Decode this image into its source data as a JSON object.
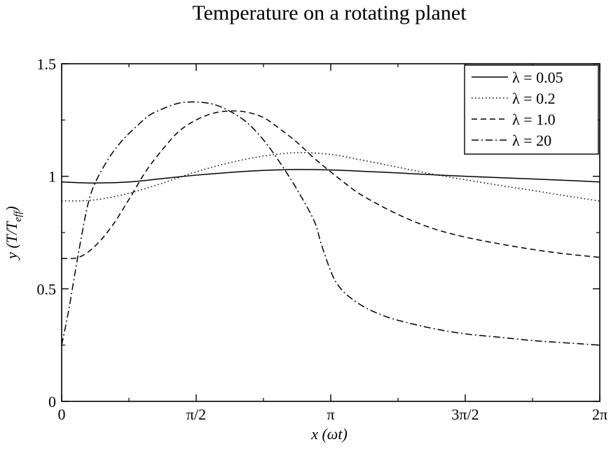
{
  "chart_data": {
    "type": "line",
    "title": "Temperature on a rotating planet",
    "xlabel": "x (ωt)",
    "ylabel_prefix": "y (T/T",
    "ylabel_subscript": "eff",
    "ylabel_suffix": ")",
    "xlim": [
      0,
      6.283185
    ],
    "ylim": [
      0,
      1.5
    ],
    "x_ticks": [
      {
        "value": 0,
        "label": "0"
      },
      {
        "value": 1.570796,
        "label": "π/2"
      },
      {
        "value": 3.141593,
        "label": "π"
      },
      {
        "value": 4.712389,
        "label": "3π/2"
      },
      {
        "value": 6.283185,
        "label": "2π"
      }
    ],
    "y_ticks": [
      {
        "value": 0,
        "label": "0"
      },
      {
        "value": 0.5,
        "label": "0.5"
      },
      {
        "value": 1,
        "label": "1"
      },
      {
        "value": 1.5,
        "label": "1.5"
      }
    ],
    "grid": false,
    "legend_position": "top-right",
    "colors": {
      "line": "#000000",
      "background": "#ffffff"
    },
    "series": [
      {
        "name": "λ = 0.05",
        "dash": "solid",
        "x": [
          0,
          0.39,
          0.79,
          1.18,
          1.57,
          1.96,
          2.36,
          2.75,
          3.14,
          3.53,
          3.93,
          4.32,
          4.71,
          5.11,
          5.5,
          5.89,
          6.28
        ],
        "y": [
          0.975,
          0.97,
          0.975,
          0.99,
          1.005,
          1.017,
          1.026,
          1.03,
          1.028,
          1.022,
          1.015,
          1.007,
          1.0,
          0.994,
          0.988,
          0.982,
          0.975
        ]
      },
      {
        "name": "λ = 0.2",
        "dash": "dotted",
        "x": [
          0,
          0.39,
          0.79,
          1.18,
          1.57,
          1.96,
          2.36,
          2.75,
          3.14,
          3.53,
          3.93,
          4.32,
          4.71,
          5.11,
          5.5,
          5.89,
          6.28
        ],
        "y": [
          0.89,
          0.895,
          0.925,
          0.97,
          1.02,
          1.06,
          1.09,
          1.105,
          1.097,
          1.07,
          1.04,
          1.01,
          0.985,
          0.96,
          0.937,
          0.913,
          0.89
        ]
      },
      {
        "name": "λ = 1.0",
        "dash": "dashed",
        "x": [
          0,
          0.2,
          0.39,
          0.59,
          0.79,
          0.98,
          1.18,
          1.37,
          1.57,
          1.77,
          1.96,
          2.16,
          2.36,
          2.55,
          2.75,
          2.95,
          3.14,
          3.34,
          3.53,
          3.93,
          4.32,
          4.71,
          5.11,
          5.5,
          5.89,
          6.28
        ],
        "y": [
          0.635,
          0.64,
          0.69,
          0.78,
          0.9,
          1.02,
          1.12,
          1.2,
          1.25,
          1.28,
          1.29,
          1.285,
          1.26,
          1.21,
          1.15,
          1.08,
          1.02,
          0.96,
          0.91,
          0.83,
          0.77,
          0.73,
          0.7,
          0.675,
          0.655,
          0.64
        ]
      },
      {
        "name": "λ = 20",
        "dash": "dashdot",
        "x": [
          0,
          0.08,
          0.16,
          0.24,
          0.31,
          0.39,
          0.55,
          0.71,
          0.87,
          1.02,
          1.18,
          1.37,
          1.57,
          1.77,
          1.96,
          2.16,
          2.36,
          2.55,
          2.75,
          2.95,
          3.03,
          3.14,
          3.22,
          3.34,
          3.53,
          3.73,
          3.93,
          4.32,
          4.71,
          5.11,
          5.5,
          5.89,
          6.28
        ],
        "y": [
          0.25,
          0.4,
          0.58,
          0.75,
          0.88,
          0.97,
          1.08,
          1.16,
          1.22,
          1.27,
          1.3,
          1.325,
          1.33,
          1.32,
          1.29,
          1.24,
          1.16,
          1.06,
          0.94,
          0.8,
          0.7,
          0.58,
          0.52,
          0.47,
          0.42,
          0.385,
          0.36,
          0.325,
          0.3,
          0.285,
          0.27,
          0.26,
          0.25
        ]
      }
    ]
  }
}
